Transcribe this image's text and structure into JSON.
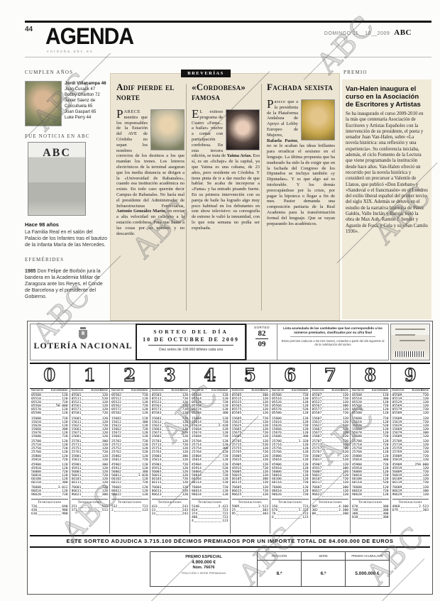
{
  "page": {
    "number": "44",
    "section": "AGENDA",
    "subtitle": "cordoba.abc.es",
    "date": "DOMINGO 11__10__2009",
    "brand": "ABC"
  },
  "watermark": {
    "label": "ABC"
  },
  "birthdays": {
    "heading": "CUMPLEN AÑOS",
    "featured": "Jordi Villacampa 46",
    "others": [
      "Joan Cusack 47",
      "Bobby Charlton 72",
      "Javier Sáenz de",
      "Cosculluela 65",
      "Joan Gaspart 65",
      "Luke Perry 44"
    ]
  },
  "fue_noticia": {
    "heading": "FUE NOTICIA EN ABC",
    "cover_brand": "ABC",
    "age_title": "Hace 98 años",
    "caption": "La Familia Real en el salón del Palacio de los Infantes tras el bautizo de la Infanta María de las Mercedes."
  },
  "efemerides": {
    "heading": "EFEMÉRIDES",
    "year": "1985",
    "text": " Don Felipe de Borbón jura la bandera en la Academia Militar de Zaragoza ante los Reyes, el Conde de Barcelona y el presidente del Gobierno."
  },
  "breverias": {
    "banner": "BREVERÍAS",
    "articles": [
      {
        "title": "Adif pierde el norte",
        "drop": "P",
        "lead": "ARECE",
        "t1": " mentira que los responsables de la Estación del AVE de Córdoba no sepan los nombres correctos de los destinos a los que mandan los trenes. Los letreros electrónicos de la terminal aseguran que los media distancia se dirigen a la «Universidad de Rabanales», cuando esa institución académica no existe. En todo caso querrán decir Campus de Rabanales. No haría mal el presidente del Administrador de Infraestructuras Ferroviarias, ",
        "bold": "Antonio González Marín,",
        "t2": " en enviar a alta velocidad un callejero a la estación cordobesa. Para que llame a las cosas por su nombre y no descarrile."
      },
      {
        "title": "«Cordobesa» famosa",
        "drop": "E",
        "lead": "L",
        "t1": " exitoso programa de Cuatro «Fama... a bailar» vuelve a contar con participación cordobesa. En esta tercera edición, se trata de ",
        "bold": "Yaima Arias.",
        "t2": " Eso sí, es un «fichaje» de la capital, ya que Yaima es una cubana, de 23 años, pero residente en Córdoba. Y tiene pinta de ir a dar mucho de que hablar. Se acaba de incorporar a «Fama» y ha entrado pisando fuerte. En su primera intervención con su pareja de baile ha logrado algo muy poco habitual en los debutantes en este show televisivo: su coreografía de estreno le valió la inmunidad, con lo que esta semana no podía ser expulsada."
      },
      {
        "title": "Fachada sexista",
        "drop": "P",
        "lead": "arece",
        "t1": " que a la presidenta de la Plataforma Andaluza de Apoyo al Lobby Europeo de Mujeres, ",
        "bold": "Rafaela Pastor,",
        "t2": " no se le acaban las ideas brillantes para erradicar el sexismo en el lenguaje. La última propuesta que ha madurado ha sido la de exigir que en la fachada del Congreso de los Diputados se incluya también «y Diputadas». Y es que algo así es intolerable. Y los demás preocupándose por la crisis, por pagar la hipoteca o llegar a fin de mes. Pastor demanda una composición paritaria de la Real Academia para la transformación formal del lenguaje. Que se vayan preparando los académicos."
      }
    ]
  },
  "premio": {
    "heading": "PREMIO",
    "title": "Van-Halen inaugura el curso en la Asociación de Escritores y Artistas",
    "body": "Se ha inaugurado el curso 2009-2010 en la más que centenaria Asociación de Escritores y Artistas Españoles con la intervención de su presidente, el poeta y senador Juan Van-Halen, sobre «La novela histórica: una reflexión y una experiencia». Su conferencia iniciaba, además, el ciclo Fomento de la Lectura que viene programando la institución desde hace años. Van-Halen ofreció un recorrido por la novela histórica y consideró un precursor a Valentín de Llanos, que publicó «Don Esteban» y «Sandoval o el francmasón» en el Londres del exilio liberal español del primer tercio del siglo XIX. Además se detuvo en el estudio de la narrativa histórica de Pérez Galdós, Valle Inclán y Baroja, trató la obra de Max Aub, Ramón J. Sender y Agustín de Foxá, y Cela y su «San Camilo 1936»."
  },
  "lottery": {
    "brand": "LOTERÍA NACIONAL",
    "draw_title": "SORTEO DEL DÍA",
    "draw_date": "10 DE OCTUBRE DE 2009",
    "draw_sub": "Diez series de 100.000 billetes cada una",
    "sorteo_label": "SORTEO",
    "sorteo_num": "82",
    "sorteo_year": "09",
    "legal1": "Lista acumulada de las cantidades que han correspondido a los números premiados, clasificados por su cifra final",
    "legal2": "Estos premios caducan a los tres meses, contados a partir del día siguiente al de la celebración del sorteo",
    "digits": [
      "0",
      "1",
      "2",
      "3",
      "4",
      "5",
      "6",
      "7",
      "8",
      "9"
    ],
    "col_head_num": "Números",
    "col_head_eur": "Euros/Billete",
    "term_label": "Terminaciones",
    "rows": [
      {
        "b": "0550",
        "p": [
          "120",
          "120",
          "720",
          "120",
          "120",
          "300",
          "720",
          "120",
          "120",
          "720"
        ]
      },
      {
        "b": "0551",
        "p": [
          "120",
          "520",
          "120",
          "720",
          "120",
          "120",
          "120",
          "720",
          "300",
          "120"
        ]
      },
      {
        "b": "0552",
        "p": [
          "720",
          "120",
          "120",
          "120",
          "720",
          "120",
          "120",
          "120",
          "120",
          "120"
        ]
      },
      {
        "b": "0556",
        "p": [
          "50.000",
          "120",
          "720",
          "120",
          "120",
          "720",
          "120",
          "300",
          "720",
          "120"
        ]
      },
      {
        "b": "0557",
        "p": [
          "120",
          "120",
          "120",
          "720",
          "120",
          "120",
          "520",
          "120",
          "120",
          "720"
        ]
      },
      {
        "b": "0558",
        "p": [
          "120",
          "720",
          "120",
          "120",
          "300",
          "120",
          "120",
          "720",
          "120",
          "120"
        ]
      },
      {
        "b": "1560",
        "p": [
          "720",
          "120",
          "120",
          "720",
          "120",
          "720",
          "120",
          "120",
          "720",
          "120"
        ]
      },
      {
        "b": "1561",
        "p": [
          "120",
          "120",
          "300",
          "120",
          "720",
          "120",
          "120",
          "120",
          "120",
          "720"
        ]
      },
      {
        "b": "1562",
        "p": [
          "120",
          "720",
          "120",
          "120",
          "2.420",
          "120",
          "720",
          "120",
          "520",
          "120"
        ]
      },
      {
        "b": "1566",
        "p": [
          "300",
          "120",
          "720",
          "120",
          "120",
          "120",
          "120",
          "720",
          "120",
          "120"
        ]
      },
      {
        "b": "1567",
        "p": [
          "120",
          "120",
          "120",
          "520",
          "120",
          "720",
          "120",
          "120",
          "120",
          "300"
        ]
      },
      {
        "b": "1568",
        "p": [
          "720",
          "120",
          "120",
          "120",
          "720",
          "120",
          "300",
          "120",
          "720",
          "120"
        ]
      },
      {
        "b": "2570",
        "p": [
          "120",
          "300",
          "720",
          "120",
          "120",
          "120",
          "1.320",
          "720",
          "120",
          "120"
        ]
      },
      {
        "b": "2571",
        "p": [
          "120",
          "120",
          "120",
          "720",
          "120",
          "520",
          "120",
          "120",
          "720",
          "120"
        ]
      },
      {
        "b": "2575",
        "p": [
          "720",
          "120",
          "120",
          "120",
          "300",
          "120",
          "120",
          "720",
          "120",
          "720"
        ]
      },
      {
        "b": "2576",
        "p": [
          "120",
          "720",
          "520",
          "120",
          "120",
          "720",
          "120",
          "120",
          "120",
          "120"
        ]
      },
      {
        "b": "3580",
        "p": [
          "120",
          "120",
          "120",
          "300",
          "720",
          "120",
          "720",
          "120",
          "120",
          "720"
        ]
      },
      {
        "b": "3581",
        "p": [
          "720",
          "120",
          "720",
          "120",
          "120",
          "120",
          "120",
          "520",
          "300",
          "120"
        ]
      },
      {
        "b": "4590",
        "p": [
          "120",
          "300",
          "120",
          "720",
          "120",
          "120",
          "120",
          "120",
          "720",
          "250.000"
        ]
      },
      {
        "b": "4591",
        "p": [
          "120",
          "120",
          "120",
          "120",
          "520",
          "720",
          "120",
          "300",
          "120",
          "120"
        ]
      },
      {
        "b": "5600",
        "p": [
          "720",
          "120",
          "300",
          "120",
          "120",
          "120",
          "720",
          "120",
          "120",
          "720"
        ]
      },
      {
        "b": "5601",
        "p": [
          "120",
          "720",
          "1.020",
          "120",
          "720",
          "120",
          "120",
          "120",
          "720",
          "120"
        ]
      },
      {
        "b": "6610",
        "p": [
          "120",
          "120",
          "120",
          "720",
          "120",
          "300",
          "120",
          "720",
          "120",
          "120"
        ]
      },
      {
        "b": "6611",
        "p": [
          "300",
          "120",
          "720",
          "120",
          "120",
          "120",
          "720",
          "120",
          "520",
          "720"
        ]
      },
      {
        "b": "7660",
        "p": [
          "3.012",
          "720",
          "120",
          "120",
          "720",
          "120",
          "120",
          "300",
          "120",
          "120"
        ]
      },
      {
        "b": "8661",
        "p": [
          "120",
          "120",
          "120",
          "520",
          "120",
          "720",
          "120",
          "120",
          "720",
          "300"
        ]
      },
      {
        "b": "9662",
        "p": [
          "720",
          "300",
          "120",
          "120",
          "120",
          "120",
          "720",
          "120",
          "120",
          "120"
        ]
      }
    ],
    "terms": [
      [
        [
          "726",
          "690"
        ],
        [
          "436",
          "980"
        ],
        [
          "616",
          "980"
        ]
      ],
      [
        [
          "251",
          "513"
        ],
        [
          "371",
          "513"
        ]
      ],
      [
        [
          "532",
          "723"
        ],
        [
          "2",
          "123"
        ]
      ],
      [
        [
          "433",
          "243"
        ],
        [
          "23",
          "243"
        ],
        [
          "33",
          "243"
        ]
      ],
      [
        [
          "5346",
          "2.423"
        ],
        [
          "824",
          "723"
        ],
        [
          "374",
          "723"
        ],
        [
          "486",
          "723"
        ],
        [
          "4",
          "123"
        ]
      ],
      [
        [
          "5985",
          "2.523"
        ],
        [
          "25",
          "303"
        ],
        [
          "95",
          "303"
        ]
      ],
      [
        [
          "156",
          "723"
        ],
        [
          "676",
          "1.323"
        ],
        [
          "76",
          "723"
        ],
        [
          "6",
          "123"
        ]
      ],
      [
        [
          "487",
          "4.300"
        ],
        [
          "302",
          "2.300"
        ],
        [
          "88",
          "300"
        ]
      ],
      [
        [
          "678",
          "300"
        ],
        [
          "748",
          "300"
        ],
        [
          "388",
          "300"
        ],
        [
          "818",
          "300"
        ]
      ],
      [
        [
          "4969",
          "2.523"
        ],
        [
          "679",
          "303"
        ]
      ]
    ],
    "banner": "ESTE SORTEO ADJUDICA 3.715.100 DÉCIMOS PREMIADOS POR UN IMPORTE TOTAL DE 84.000.000 DE EUROS",
    "special": {
      "label": "PREMIO ESPECIAL",
      "amount": "4.900.000 €",
      "num": "Núm. 76676",
      "note": "FRACCIÓN Y SERIE PREMIADAS",
      "fraction_label": "FRACCIÓN",
      "fraction": "8.ª",
      "serie_label": "SERIE",
      "serie": "6.ª",
      "acum_label": "PREMIO ACUMULADO",
      "acum": "5.000.000 €"
    }
  }
}
